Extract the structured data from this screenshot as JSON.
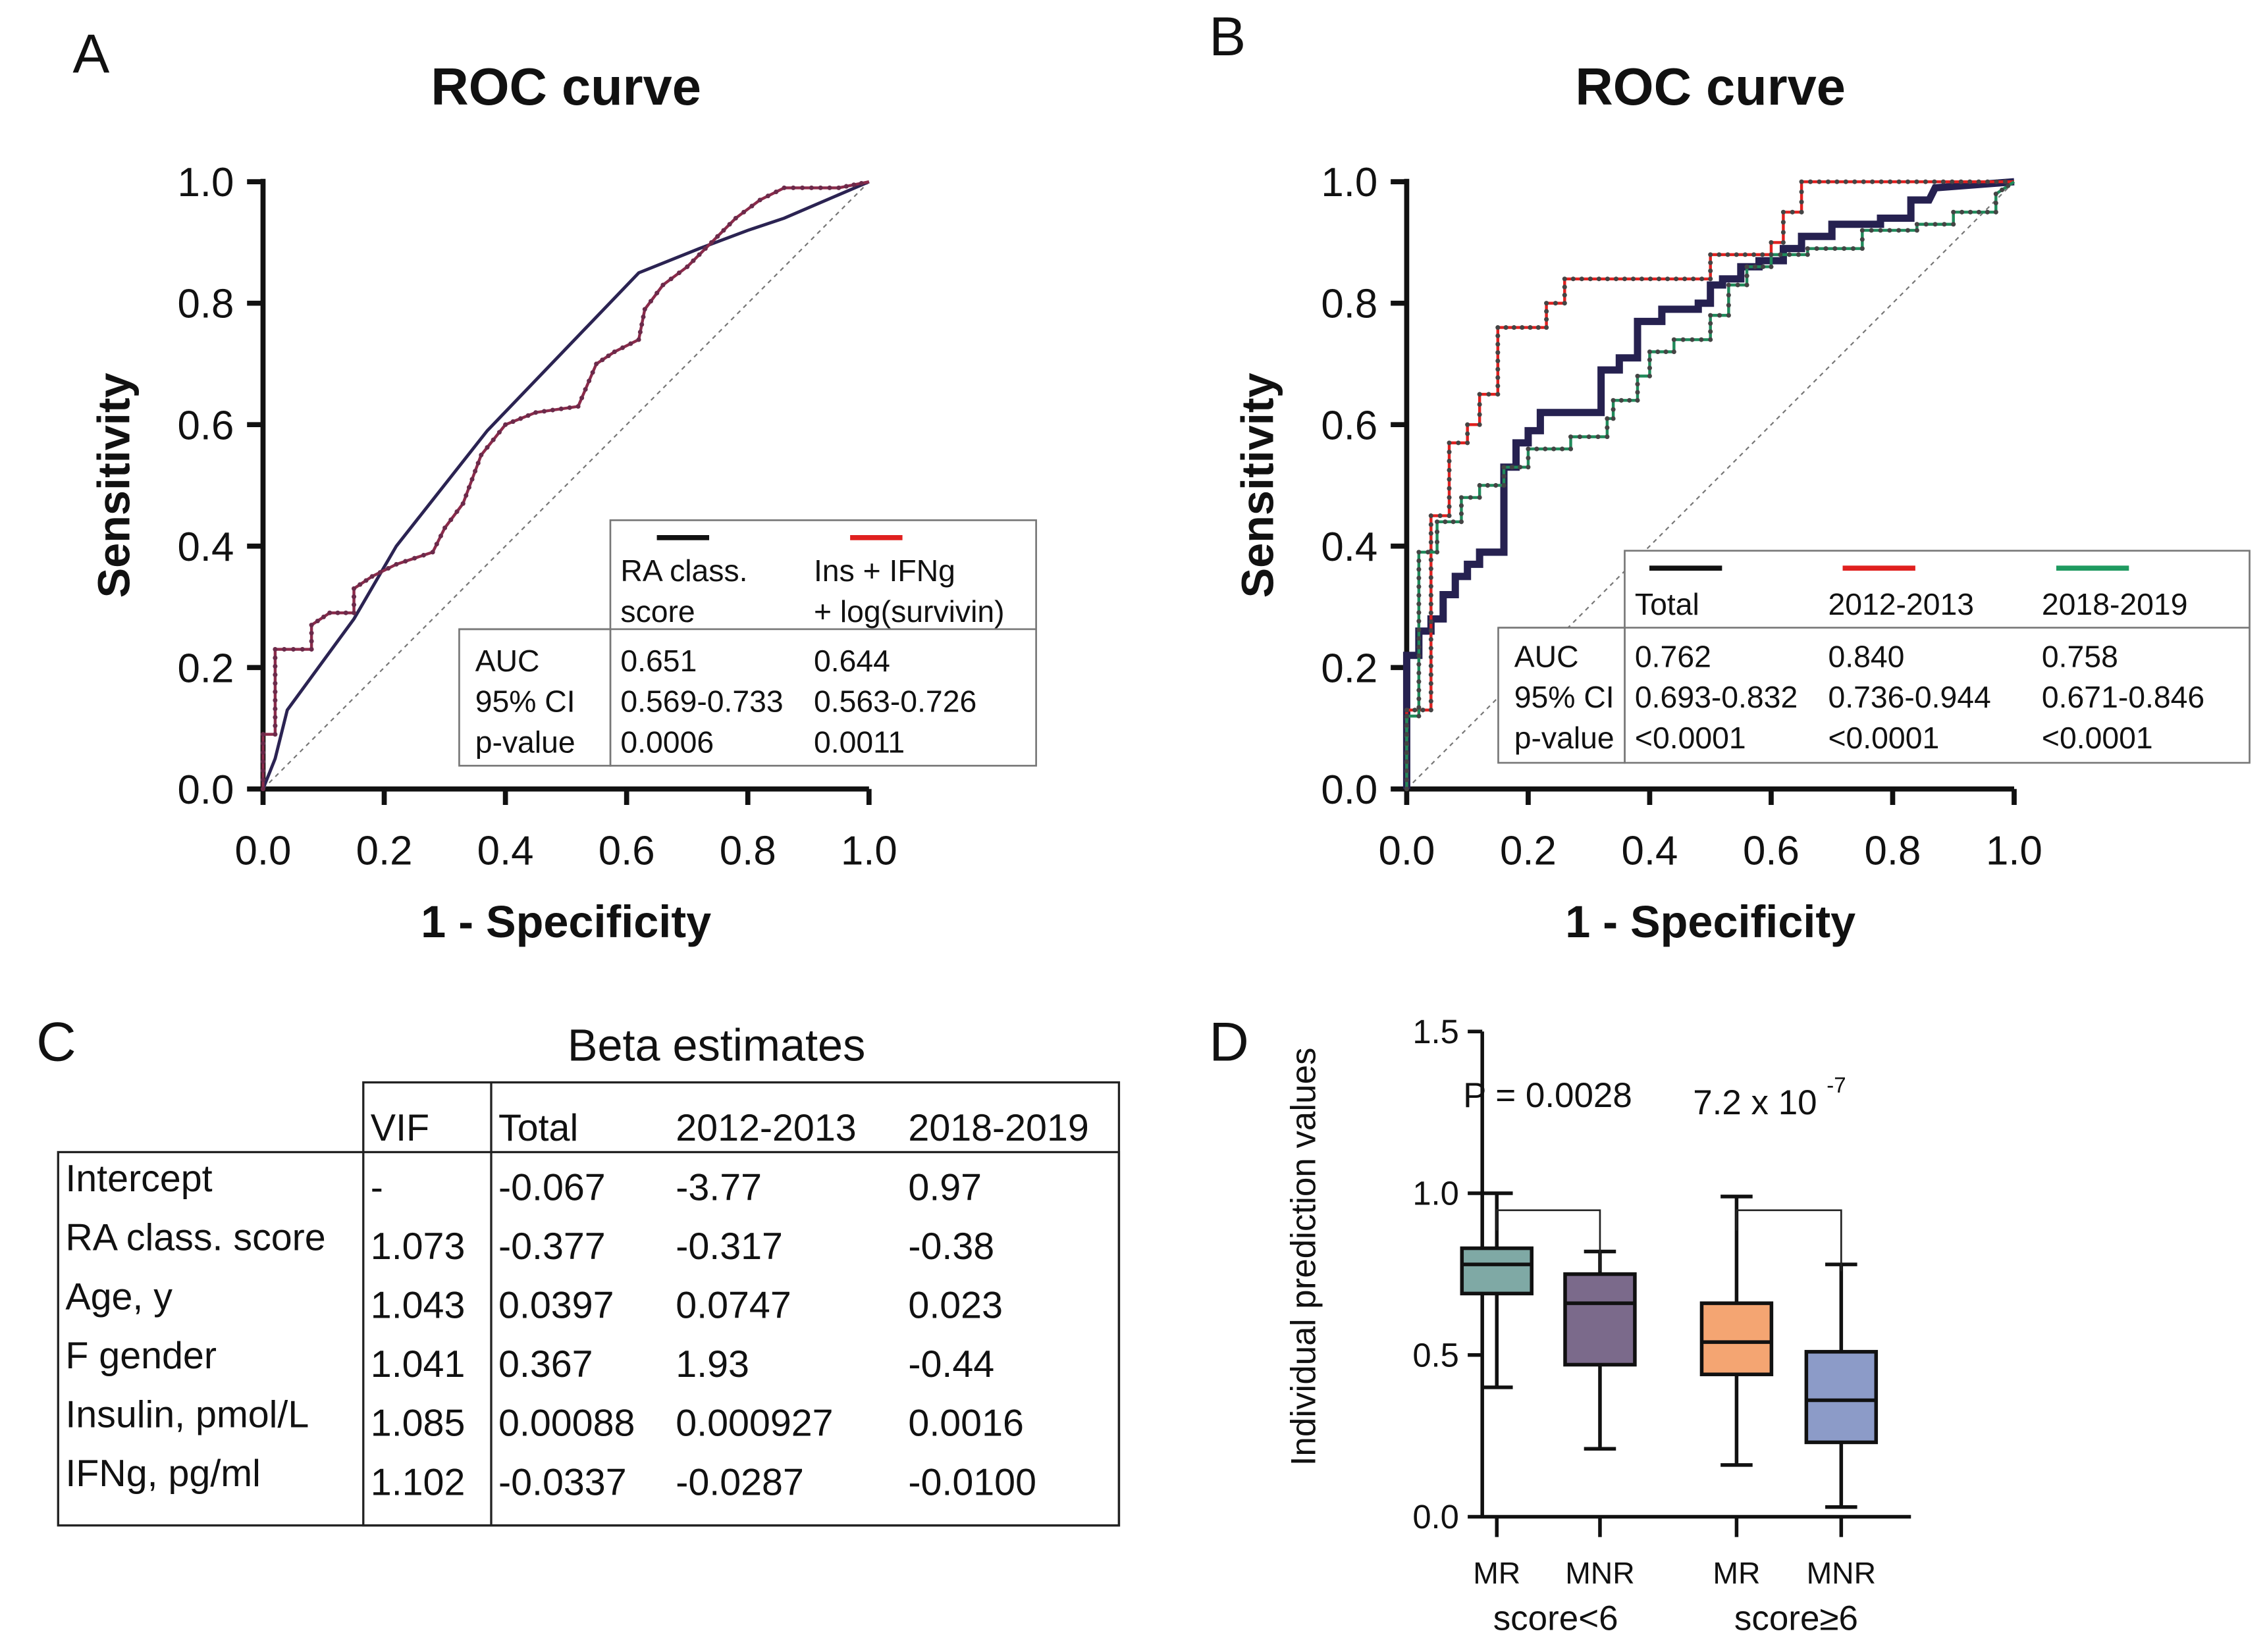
{
  "chart_data": [
    {
      "panel": "A",
      "type": "line",
      "title": "ROC curve",
      "xlabel": "1 - Specificity",
      "ylabel": "Sensitivity",
      "xlim": [
        0,
        1
      ],
      "ylim": [
        0,
        1
      ],
      "xticks": [
        "0.0",
        "0.2",
        "0.4",
        "0.6",
        "0.8",
        "1.0"
      ],
      "yticks": [
        "0.0",
        "0.2",
        "0.4",
        "0.6",
        "0.8",
        "1.0"
      ],
      "grid": false,
      "reference_line": "diagonal dashed",
      "series": [
        {
          "name": "RA class. score",
          "color": "#2b2352",
          "markers": false,
          "points": [
            [
              0,
              0
            ],
            [
              0.02,
              0.05
            ],
            [
              0.04,
              0.13
            ],
            [
              0.15,
              0.28
            ],
            [
              0.22,
              0.4
            ],
            [
              0.37,
              0.59
            ],
            [
              0.62,
              0.85
            ],
            [
              0.72,
              0.89
            ],
            [
              0.8,
              0.92
            ],
            [
              0.86,
              0.94
            ],
            [
              1,
              1
            ]
          ]
        },
        {
          "name": "Ins + IFNg + log(survivin)",
          "color": "#8b2a4a",
          "markers": true,
          "points": [
            [
              0,
              0
            ],
            [
              0,
              0.09
            ],
            [
              0.02,
              0.09
            ],
            [
              0.02,
              0.23
            ],
            [
              0.08,
              0.23
            ],
            [
              0.08,
              0.27
            ],
            [
              0.11,
              0.29
            ],
            [
              0.15,
              0.29
            ],
            [
              0.15,
              0.33
            ],
            [
              0.18,
              0.35
            ],
            [
              0.22,
              0.37
            ],
            [
              0.28,
              0.39
            ],
            [
              0.3,
              0.43
            ],
            [
              0.33,
              0.47
            ],
            [
              0.36,
              0.55
            ],
            [
              0.4,
              0.6
            ],
            [
              0.45,
              0.62
            ],
            [
              0.52,
              0.63
            ],
            [
              0.55,
              0.7
            ],
            [
              0.58,
              0.72
            ],
            [
              0.62,
              0.74
            ],
            [
              0.63,
              0.79
            ],
            [
              0.66,
              0.83
            ],
            [
              0.7,
              0.86
            ],
            [
              0.74,
              0.9
            ],
            [
              0.78,
              0.94
            ],
            [
              0.82,
              0.97
            ],
            [
              0.86,
              0.99
            ],
            [
              0.95,
              0.99
            ],
            [
              1,
              1
            ]
          ]
        }
      ],
      "legend_table": {
        "legend_colors": [
          "#111111",
          "#e0201f"
        ],
        "headers": [
          [
            "RA class.",
            "score"
          ],
          [
            "Ins + IFNg",
            "+ log(survivin)"
          ]
        ],
        "rows": [
          {
            "label": "AUC",
            "values": [
              "0.651",
              "0.644"
            ]
          },
          {
            "label": "95% CI",
            "values": [
              "0.569-0.733",
              "0.563-0.726"
            ]
          },
          {
            "label": "p-value",
            "values": [
              "0.0006",
              "0.0011"
            ]
          }
        ]
      }
    },
    {
      "panel": "B",
      "type": "line",
      "title": "ROC curve",
      "xlabel": "1 - Specificity",
      "ylabel": "Sensitivity",
      "xlim": [
        0,
        1
      ],
      "ylim": [
        0,
        1
      ],
      "xticks": [
        "0.0",
        "0.2",
        "0.4",
        "0.6",
        "0.8",
        "1.0"
      ],
      "yticks": [
        "0.0",
        "0.2",
        "0.4",
        "0.6",
        "0.8",
        "1.0"
      ],
      "grid": false,
      "reference_line": "diagonal dashed",
      "series": [
        {
          "name": "Total",
          "color": "#262150",
          "markers": false,
          "points": [
            [
              0,
              0
            ],
            [
              0,
              0.22
            ],
            [
              0.02,
              0.22
            ],
            [
              0.02,
              0.26
            ],
            [
              0.04,
              0.26
            ],
            [
              0.04,
              0.28
            ],
            [
              0.06,
              0.28
            ],
            [
              0.06,
              0.32
            ],
            [
              0.08,
              0.32
            ],
            [
              0.08,
              0.35
            ],
            [
              0.1,
              0.35
            ],
            [
              0.1,
              0.37
            ],
            [
              0.12,
              0.37
            ],
            [
              0.12,
              0.39
            ],
            [
              0.16,
              0.39
            ],
            [
              0.16,
              0.53
            ],
            [
              0.18,
              0.53
            ],
            [
              0.18,
              0.57
            ],
            [
              0.2,
              0.57
            ],
            [
              0.2,
              0.59
            ],
            [
              0.22,
              0.59
            ],
            [
              0.22,
              0.62
            ],
            [
              0.32,
              0.62
            ],
            [
              0.32,
              0.69
            ],
            [
              0.35,
              0.69
            ],
            [
              0.35,
              0.71
            ],
            [
              0.38,
              0.71
            ],
            [
              0.38,
              0.77
            ],
            [
              0.42,
              0.77
            ],
            [
              0.42,
              0.79
            ],
            [
              0.48,
              0.79
            ],
            [
              0.48,
              0.8
            ],
            [
              0.5,
              0.8
            ],
            [
              0.5,
              0.83
            ],
            [
              0.52,
              0.83
            ],
            [
              0.52,
              0.84
            ],
            [
              0.55,
              0.84
            ],
            [
              0.55,
              0.86
            ],
            [
              0.58,
              0.86
            ],
            [
              0.58,
              0.87
            ],
            [
              0.62,
              0.87
            ],
            [
              0.62,
              0.89
            ],
            [
              0.65,
              0.89
            ],
            [
              0.65,
              0.91
            ],
            [
              0.7,
              0.91
            ],
            [
              0.7,
              0.93
            ],
            [
              0.78,
              0.93
            ],
            [
              0.78,
              0.94
            ],
            [
              0.83,
              0.94
            ],
            [
              0.83,
              0.97
            ],
            [
              0.86,
              0.97
            ],
            [
              0.87,
              0.99
            ],
            [
              1,
              1
            ]
          ]
        },
        {
          "name": "2012-2013",
          "color": "#e0201f",
          "markers": true,
          "points": [
            [
              0,
              0
            ],
            [
              0,
              0.13
            ],
            [
              0.04,
              0.13
            ],
            [
              0.04,
              0.45
            ],
            [
              0.07,
              0.45
            ],
            [
              0.07,
              0.57
            ],
            [
              0.1,
              0.57
            ],
            [
              0.1,
              0.6
            ],
            [
              0.12,
              0.6
            ],
            [
              0.12,
              0.65
            ],
            [
              0.15,
              0.65
            ],
            [
              0.15,
              0.76
            ],
            [
              0.23,
              0.76
            ],
            [
              0.23,
              0.8
            ],
            [
              0.26,
              0.8
            ],
            [
              0.26,
              0.84
            ],
            [
              0.5,
              0.84
            ],
            [
              0.5,
              0.88
            ],
            [
              0.6,
              0.88
            ],
            [
              0.6,
              0.9
            ],
            [
              0.62,
              0.9
            ],
            [
              0.62,
              0.95
            ],
            [
              0.65,
              0.95
            ],
            [
              0.65,
              1
            ],
            [
              1,
              1
            ]
          ]
        },
        {
          "name": "2018-2019",
          "color": "#1f8a5a",
          "markers": true,
          "points": [
            [
              0,
              0
            ],
            [
              0,
              0.12
            ],
            [
              0.02,
              0.12
            ],
            [
              0.02,
              0.39
            ],
            [
              0.05,
              0.39
            ],
            [
              0.05,
              0.44
            ],
            [
              0.09,
              0.44
            ],
            [
              0.09,
              0.48
            ],
            [
              0.12,
              0.48
            ],
            [
              0.12,
              0.5
            ],
            [
              0.16,
              0.5
            ],
            [
              0.16,
              0.53
            ],
            [
              0.2,
              0.53
            ],
            [
              0.2,
              0.56
            ],
            [
              0.27,
              0.56
            ],
            [
              0.27,
              0.58
            ],
            [
              0.33,
              0.58
            ],
            [
              0.33,
              0.61
            ],
            [
              0.34,
              0.61
            ],
            [
              0.34,
              0.64
            ],
            [
              0.38,
              0.64
            ],
            [
              0.38,
              0.68
            ],
            [
              0.4,
              0.68
            ],
            [
              0.4,
              0.72
            ],
            [
              0.44,
              0.72
            ],
            [
              0.44,
              0.74
            ],
            [
              0.5,
              0.74
            ],
            [
              0.5,
              0.78
            ],
            [
              0.53,
              0.78
            ],
            [
              0.53,
              0.83
            ],
            [
              0.56,
              0.83
            ],
            [
              0.56,
              0.86
            ],
            [
              0.6,
              0.86
            ],
            [
              0.6,
              0.88
            ],
            [
              0.66,
              0.88
            ],
            [
              0.66,
              0.89
            ],
            [
              0.75,
              0.89
            ],
            [
              0.75,
              0.92
            ],
            [
              0.84,
              0.92
            ],
            [
              0.84,
              0.93
            ],
            [
              0.9,
              0.93
            ],
            [
              0.9,
              0.95
            ],
            [
              0.97,
              0.95
            ],
            [
              0.97,
              0.98
            ],
            [
              1,
              1
            ]
          ]
        }
      ],
      "legend_table": {
        "legend_colors": [
          "#111111",
          "#e0201f",
          "#1f9a60"
        ],
        "headers": [
          [
            "Total"
          ],
          [
            "2012-2013"
          ],
          [
            "2018-2019"
          ]
        ],
        "rows": [
          {
            "label": "AUC",
            "values": [
              "0.762",
              "0.840",
              "0.758"
            ]
          },
          {
            "label": "95% CI",
            "values": [
              "0.693-0.832",
              "0.736-0.944",
              "0.671-0.846"
            ]
          },
          {
            "label": "p-value",
            "values": [
              "<0.0001",
              "<0.0001",
              "<0.0001"
            ]
          }
        ]
      }
    },
    {
      "panel": "C",
      "type": "table",
      "title": "Beta estimates",
      "columns": [
        "VIF",
        "Total",
        "2012-2013",
        "2018-2019"
      ],
      "rows": [
        {
          "label": "Intercept",
          "values": [
            "-",
            "-0.067",
            "-3.77",
            "0.97"
          ]
        },
        {
          "label": "RA class. score",
          "values": [
            "1.073",
            "-0.377",
            "-0.317",
            "-0.38"
          ]
        },
        {
          "label": "Age, y",
          "values": [
            "1.043",
            "0.0397",
            "0.0747",
            "0.023"
          ]
        },
        {
          "label": "F gender",
          "values": [
            "1.041",
            "0.367",
            "1.93",
            "-0.44"
          ]
        },
        {
          "label": "Insulin, pmol/L",
          "values": [
            "1.085",
            "0.00088",
            "0.000927",
            "0.0016"
          ]
        },
        {
          "label": "IFNg, pg/ml",
          "values": [
            "1.102",
            "-0.0337",
            "-0.0287",
            "-0.0100"
          ]
        }
      ]
    },
    {
      "panel": "D",
      "type": "box",
      "ylabel": "Individual prediction values",
      "ylim": [
        0,
        1.5
      ],
      "yticks": [
        "0.0",
        "0.5",
        "1.0",
        "1.5"
      ],
      "groups": [
        {
          "label": "score<6",
          "comparison": "P = 0.0028",
          "boxes": [
            {
              "name": "MR",
              "color": "#7fa9a5",
              "min": 0.4,
              "q1": 0.69,
              "median": 0.78,
              "q3": 0.83,
              "max": 1.0
            },
            {
              "name": "MNR",
              "color": "#7b6a8b",
              "min": 0.21,
              "q1": 0.47,
              "median": 0.66,
              "q3": 0.75,
              "max": 0.82
            }
          ]
        },
        {
          "label": "score≥6",
          "comparison_base": "7.2 x 10",
          "comparison_exp": "-7",
          "boxes": [
            {
              "name": "MR",
              "color": "#f4a572",
              "min": 0.16,
              "q1": 0.44,
              "median": 0.54,
              "q3": 0.66,
              "max": 0.99
            },
            {
              "name": "MNR",
              "color": "#8c9bc8",
              "min": 0.03,
              "q1": 0.23,
              "median": 0.36,
              "q3": 0.51,
              "max": 0.78
            }
          ]
        }
      ]
    }
  ],
  "panel_letters": [
    "A",
    "B",
    "C",
    "D"
  ]
}
